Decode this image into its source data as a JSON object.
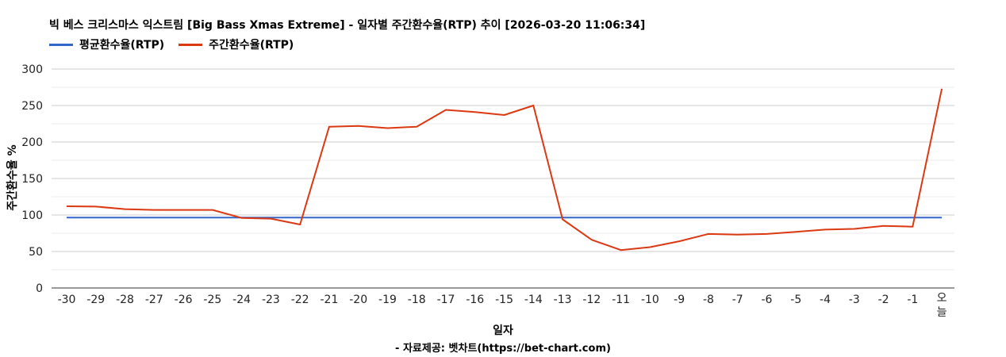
{
  "chart_data": {
    "type": "line",
    "title": "빅 베스 크리스마스 익스트림 [Big Bass Xmas Extreme] - 일자별 주간환수율(RTP) 추이 [2026-03-20 11:06:34]",
    "xlabel": "일자",
    "ylabel": "주간환수율 %",
    "footer": "- 자료제공: 벳차트(https://bet-chart.com)",
    "categories": [
      "-30",
      "-29",
      "-28",
      "-27",
      "-26",
      "-25",
      "-24",
      "-23",
      "-22",
      "-21",
      "-20",
      "-19",
      "-18",
      "-17",
      "-16",
      "-15",
      "-14",
      "-13",
      "-12",
      "-11",
      "-10",
      "-9",
      "-8",
      "-7",
      "-6",
      "-5",
      "-4",
      "-3",
      "-2",
      "-1",
      "오늘"
    ],
    "ylim": [
      0,
      300
    ],
    "yticks": [
      0,
      50,
      100,
      150,
      200,
      250,
      300
    ],
    "grid": true,
    "legend_position": "top-left",
    "series": [
      {
        "name": "평균환수율(RTP)",
        "color": "#3366cc",
        "values": [
          96.5,
          96.5,
          96.5,
          96.5,
          96.5,
          96.5,
          96.5,
          96.5,
          96.5,
          96.5,
          96.5,
          96.5,
          96.5,
          96.5,
          96.5,
          96.5,
          96.5,
          96.5,
          96.5,
          96.5,
          96.5,
          96.5,
          96.5,
          96.5,
          96.5,
          96.5,
          96.5,
          96.5,
          96.5,
          96.5,
          96.5
        ]
      },
      {
        "name": "주간환수율(RTP)",
        "color": "#dc3912",
        "values": [
          112,
          111.5,
          108,
          107,
          107,
          107,
          96,
          95,
          87,
          221,
          222,
          219,
          221,
          244,
          241,
          237,
          250,
          94,
          66,
          52,
          56,
          64,
          74,
          73,
          74,
          77,
          80,
          81,
          85,
          84,
          273
        ]
      }
    ]
  }
}
